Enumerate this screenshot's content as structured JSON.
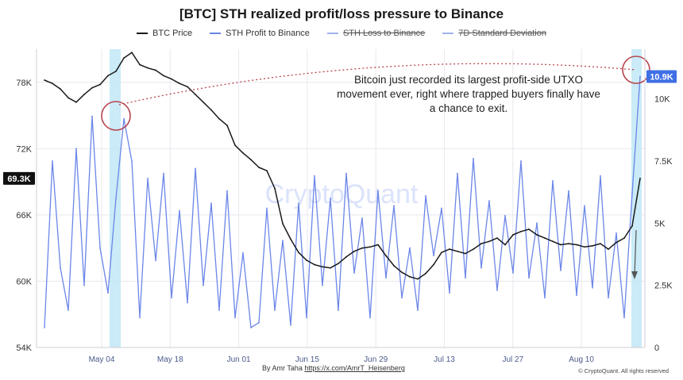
{
  "chart_data": {
    "type": "line",
    "title": "[BTC] STH realized profit/loss pressure to Binance",
    "legend": [
      {
        "name": "BTC Price",
        "color": "#1a1a1a",
        "enabled": true
      },
      {
        "name": "STH Profit to Binance",
        "color": "#6b86e8",
        "enabled": true
      },
      {
        "name": "STH Loss to Binance",
        "color": "#6b86e8",
        "enabled": false
      },
      {
        "name": "7D Standard Deviation",
        "color": "#6b86e8",
        "enabled": false
      }
    ],
    "x_ticks": [
      "May 04",
      "May 18",
      "Jun 01",
      "Jun 15",
      "Jun 29",
      "Jul 13",
      "Jul 27",
      "Aug 10"
    ],
    "y_left": {
      "ticks": [
        "78K",
        "72K",
        "66K",
        "60K",
        "54K"
      ],
      "range": [
        54000,
        81000
      ]
    },
    "y_right": {
      "ticks": [
        "10K",
        "7.5K",
        "5K",
        "2.5K",
        "0"
      ],
      "range": [
        0,
        12000
      ]
    },
    "current_price_label": "69.3K",
    "current_profit_label": "10.9K",
    "series": [
      {
        "name": "BTC Price",
        "axis": "left",
        "values": [
          78200,
          77900,
          77400,
          76600,
          76200,
          76900,
          77500,
          77800,
          78600,
          79000,
          80200,
          80700,
          79600,
          79300,
          79100,
          78600,
          78300,
          77900,
          77600,
          76900,
          76200,
          75500,
          74700,
          74100,
          72300,
          71600,
          71000,
          70300,
          70000,
          68400,
          65200,
          63800,
          62600,
          61900,
          61500,
          61300,
          61200,
          61600,
          62200,
          62700,
          63000,
          63100,
          63300,
          62300,
          61400,
          60800,
          60400,
          60200,
          60700,
          61500,
          62600,
          62900,
          62700,
          62500,
          62900,
          63400,
          63600,
          63900,
          63300,
          64200,
          64500,
          64700,
          64200,
          63900,
          63600,
          63300,
          63400,
          63300,
          63100,
          63200,
          63400,
          62900,
          63500,
          63900,
          65000,
          69300
        ]
      },
      {
        "name": "STH Profit to Binance",
        "axis": "right",
        "values": [
          800,
          7500,
          3200,
          1500,
          8000,
          2500,
          9300,
          4000,
          2200,
          6000,
          9200,
          7500,
          1200,
          6800,
          3500,
          7000,
          2000,
          5500,
          1800,
          7200,
          2500,
          5800,
          1500,
          6300,
          1200,
          3800,
          800,
          1000,
          5600,
          1500,
          4300,
          900,
          5800,
          1200,
          6900,
          2500,
          6000,
          1500,
          7000,
          3000,
          5200,
          1200,
          6300,
          2800,
          5700,
          2000,
          4000,
          1500,
          6100,
          3700,
          5600,
          2200,
          7000,
          2800,
          7600,
          3200,
          5900,
          2300,
          5300,
          3000,
          7500,
          2800,
          5000,
          2000,
          6700,
          3100,
          6300,
          2100,
          5700,
          2400,
          6900,
          2000,
          4600,
          1200,
          6200,
          10900
        ]
      }
    ],
    "highlights": [
      "May 04",
      "Aug 17"
    ],
    "annotation": "Bitcoin just recorded its largest profit-side UTXO movement ever, right where trapped buyers finally have a chance to exit.",
    "watermark": "CryptoQuant",
    "author": "By Amr Taha",
    "author_link": "https://x.com/AmrT_Heisenberg",
    "copyright": "© CryptoQuant. All rights reserved"
  },
  "colors": {
    "price": "#1a1a1a",
    "profit": "#6b86e8",
    "highlight": "#bde6f5",
    "circle": "#b8454f",
    "grid": "#e8e8ef",
    "badge_left": "#101010",
    "badge_right": "#3f6fe6",
    "watermark": "#dbe3fb"
  }
}
